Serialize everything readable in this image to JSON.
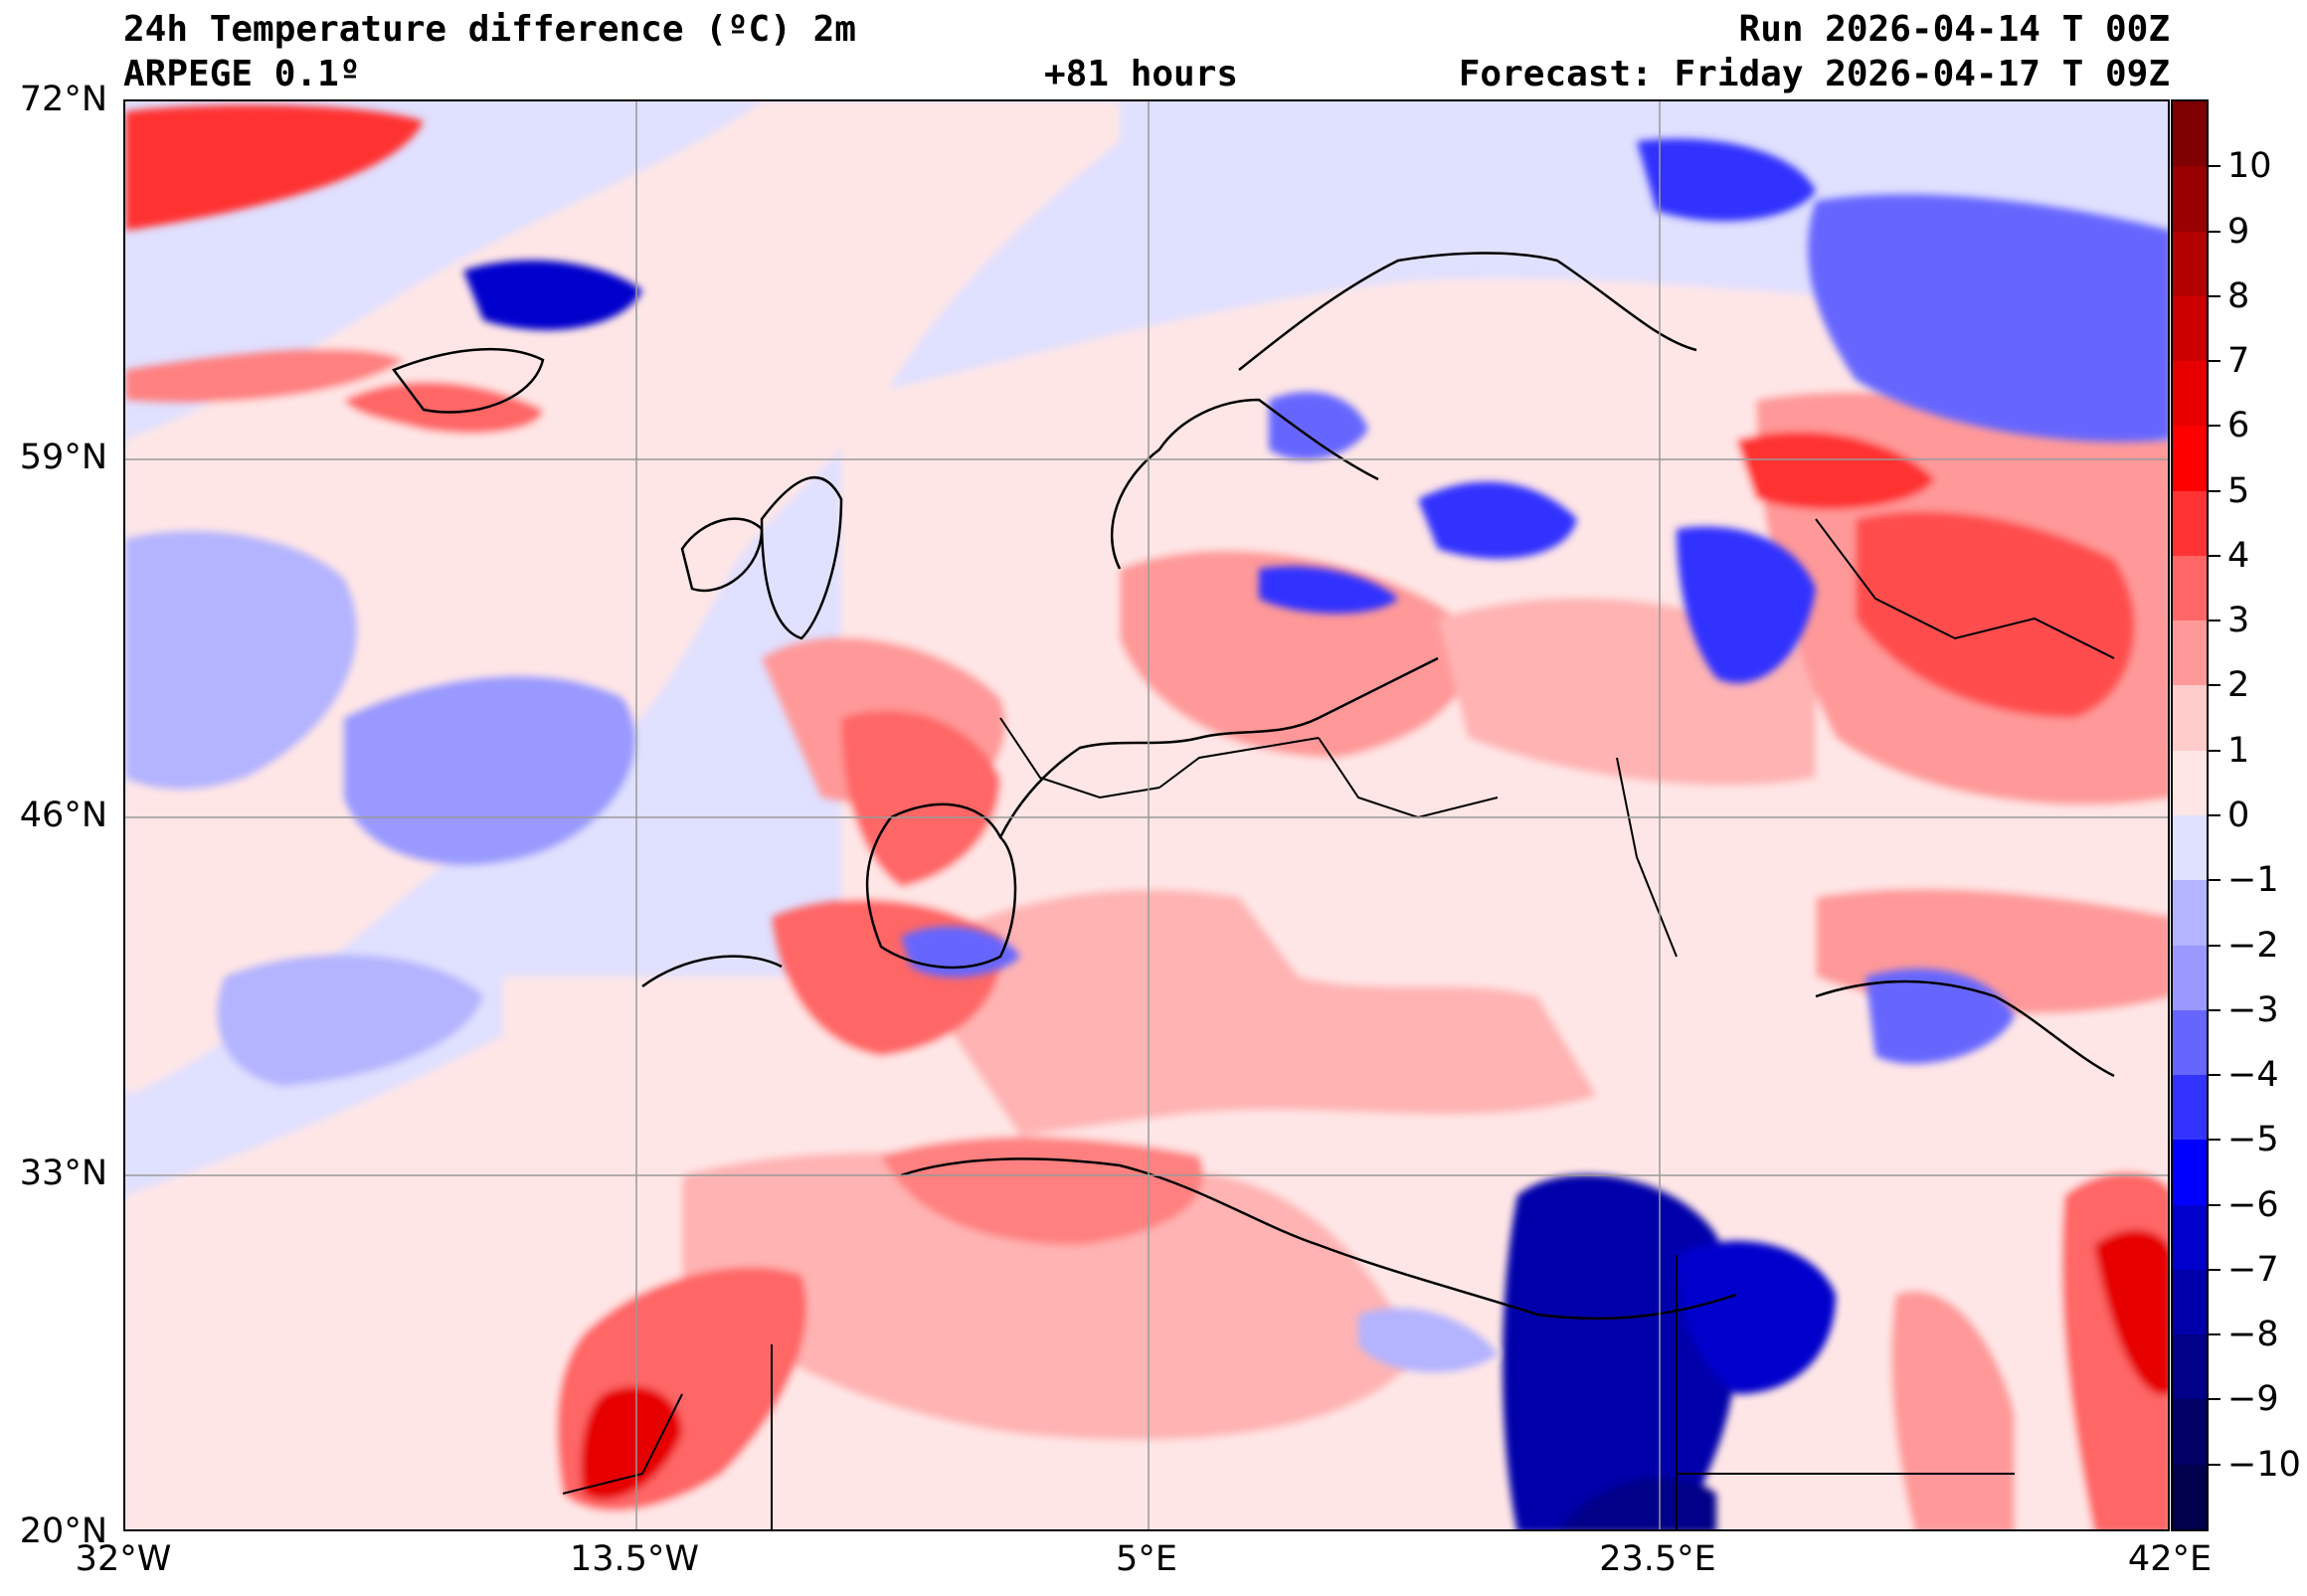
{
  "header": {
    "title": "24h Temperature difference (ºC) 2m",
    "model": "ARPEGE 0.1º",
    "lead": "+81 hours",
    "run": "Run 2026-04-14 T 00Z",
    "forecast": "Forecast: Friday 2026-04-17 T 09Z"
  },
  "map": {
    "lat_labels": [
      "72°N",
      "59°N",
      "46°N",
      "33°N",
      "20°N"
    ],
    "lon_labels": [
      "32°W",
      "13.5°W",
      "5°E",
      "23.5°E",
      "42°E"
    ]
  },
  "colorbar": {
    "labels": [
      "10",
      "9",
      "8",
      "7",
      "6",
      "5",
      "4",
      "3",
      "2",
      "1",
      "0",
      "−1",
      "−2",
      "−3",
      "−4",
      "−5",
      "−6",
      "−7",
      "−8",
      "−9",
      "−10"
    ],
    "colors": [
      "#7f0000",
      "#990000",
      "#b30000",
      "#cc0000",
      "#e60000",
      "#ff0000",
      "#ff3333",
      "#ff6666",
      "#ff9999",
      "#ffcccc",
      "#ffe6e6",
      "#e0e0ff",
      "#b3b3ff",
      "#9999ff",
      "#6666ff",
      "#3333ff",
      "#0000ff",
      "#0000cc",
      "#0000aa",
      "#000088",
      "#000066",
      "#00004d"
    ]
  }
}
